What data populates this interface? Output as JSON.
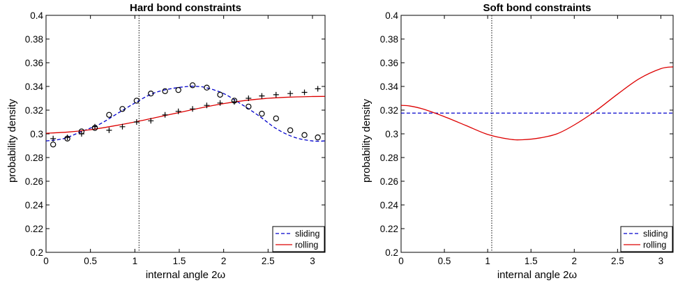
{
  "chart_data": [
    {
      "type": "line",
      "title": "Hard bond constraints",
      "xlabel": "internal angle 2ω",
      "ylabel": "probability density",
      "xlim": [
        0,
        3.14159
      ],
      "ylim": [
        0.2,
        0.4
      ],
      "xticks": [
        "0",
        "0.5",
        "1",
        "1.5",
        "2",
        "2.5",
        "3"
      ],
      "yticks": [
        "0.2",
        "0.22",
        "0.24",
        "0.26",
        "0.28",
        "0.3",
        "0.32",
        "0.34",
        "0.36",
        "0.38",
        "0.4"
      ],
      "vline_x": 1.047,
      "legend_position": "bottom-right",
      "series": [
        {
          "name": "sliding",
          "style": "dashed",
          "color": "#0000cc",
          "x": [
            0,
            0.2,
            0.4,
            0.6,
            0.8,
            1.0,
            1.2,
            1.4,
            1.6,
            1.7,
            1.8,
            2.0,
            2.2,
            2.4,
            2.6,
            2.8,
            3.0,
            3.14
          ],
          "values": [
            0.294,
            0.296,
            0.302,
            0.308,
            0.317,
            0.326,
            0.334,
            0.338,
            0.34,
            0.34,
            0.339,
            0.334,
            0.325,
            0.315,
            0.304,
            0.297,
            0.294,
            0.294
          ]
        },
        {
          "name": "rolling",
          "style": "solid",
          "color": "#dd0000",
          "x": [
            0,
            0.25,
            0.5,
            0.75,
            1.0,
            1.25,
            1.5,
            1.75,
            2.0,
            2.25,
            2.5,
            2.75,
            3.0,
            3.14
          ],
          "values": [
            0.3005,
            0.3015,
            0.3035,
            0.3065,
            0.31,
            0.314,
            0.318,
            0.322,
            0.3255,
            0.3282,
            0.33,
            0.331,
            0.3315,
            0.3316
          ]
        },
        {
          "marker": "circle",
          "x": [
            0.08,
            0.24,
            0.4,
            0.55,
            0.71,
            0.86,
            1.02,
            1.18,
            1.34,
            1.49,
            1.65,
            1.81,
            1.96,
            2.12,
            2.28,
            2.43,
            2.59,
            2.75,
            2.91,
            3.06
          ],
          "values": [
            0.291,
            0.296,
            0.302,
            0.305,
            0.316,
            0.321,
            0.328,
            0.334,
            0.336,
            0.337,
            0.341,
            0.339,
            0.333,
            0.328,
            0.323,
            0.317,
            0.313,
            0.303,
            0.299,
            0.297
          ]
        },
        {
          "marker": "plus",
          "x": [
            0.08,
            0.24,
            0.4,
            0.55,
            0.71,
            0.86,
            1.02,
            1.18,
            1.34,
            1.49,
            1.65,
            1.81,
            1.96,
            2.12,
            2.28,
            2.43,
            2.59,
            2.75,
            2.91,
            3.06
          ],
          "values": [
            0.296,
            0.297,
            0.3,
            0.306,
            0.303,
            0.306,
            0.31,
            0.311,
            0.316,
            0.319,
            0.321,
            0.324,
            0.326,
            0.327,
            0.33,
            0.332,
            0.333,
            0.334,
            0.335,
            0.338
          ]
        }
      ]
    },
    {
      "type": "line",
      "title": "Soft bond constraints",
      "xlabel": "internal angle 2ω",
      "ylabel": "probability density",
      "xlim": [
        0,
        3.14159
      ],
      "ylim": [
        0.2,
        0.4
      ],
      "xticks": [
        "0",
        "0.5",
        "1",
        "1.5",
        "2",
        "2.5",
        "3"
      ],
      "yticks": [
        "0.2",
        "0.22",
        "0.24",
        "0.26",
        "0.28",
        "0.3",
        "0.32",
        "0.34",
        "0.36",
        "0.38",
        "0.4"
      ],
      "vline_x": 1.047,
      "legend_position": "bottom-right",
      "series": [
        {
          "name": "sliding",
          "style": "dashed",
          "color": "#0000cc",
          "x": [
            0,
            3.14159
          ],
          "values": [
            0.3175,
            0.3175
          ]
        },
        {
          "name": "rolling",
          "style": "solid",
          "color": "#dd0000",
          "x": [
            0,
            0.1,
            0.25,
            0.5,
            0.75,
            1.0,
            1.25,
            1.4,
            1.6,
            1.8,
            2.0,
            2.25,
            2.5,
            2.75,
            3.0,
            3.14
          ],
          "values": [
            0.324,
            0.3235,
            0.321,
            0.3145,
            0.307,
            0.2995,
            0.2955,
            0.295,
            0.2965,
            0.3,
            0.3075,
            0.3195,
            0.3335,
            0.3465,
            0.355,
            0.3565
          ]
        }
      ]
    }
  ]
}
